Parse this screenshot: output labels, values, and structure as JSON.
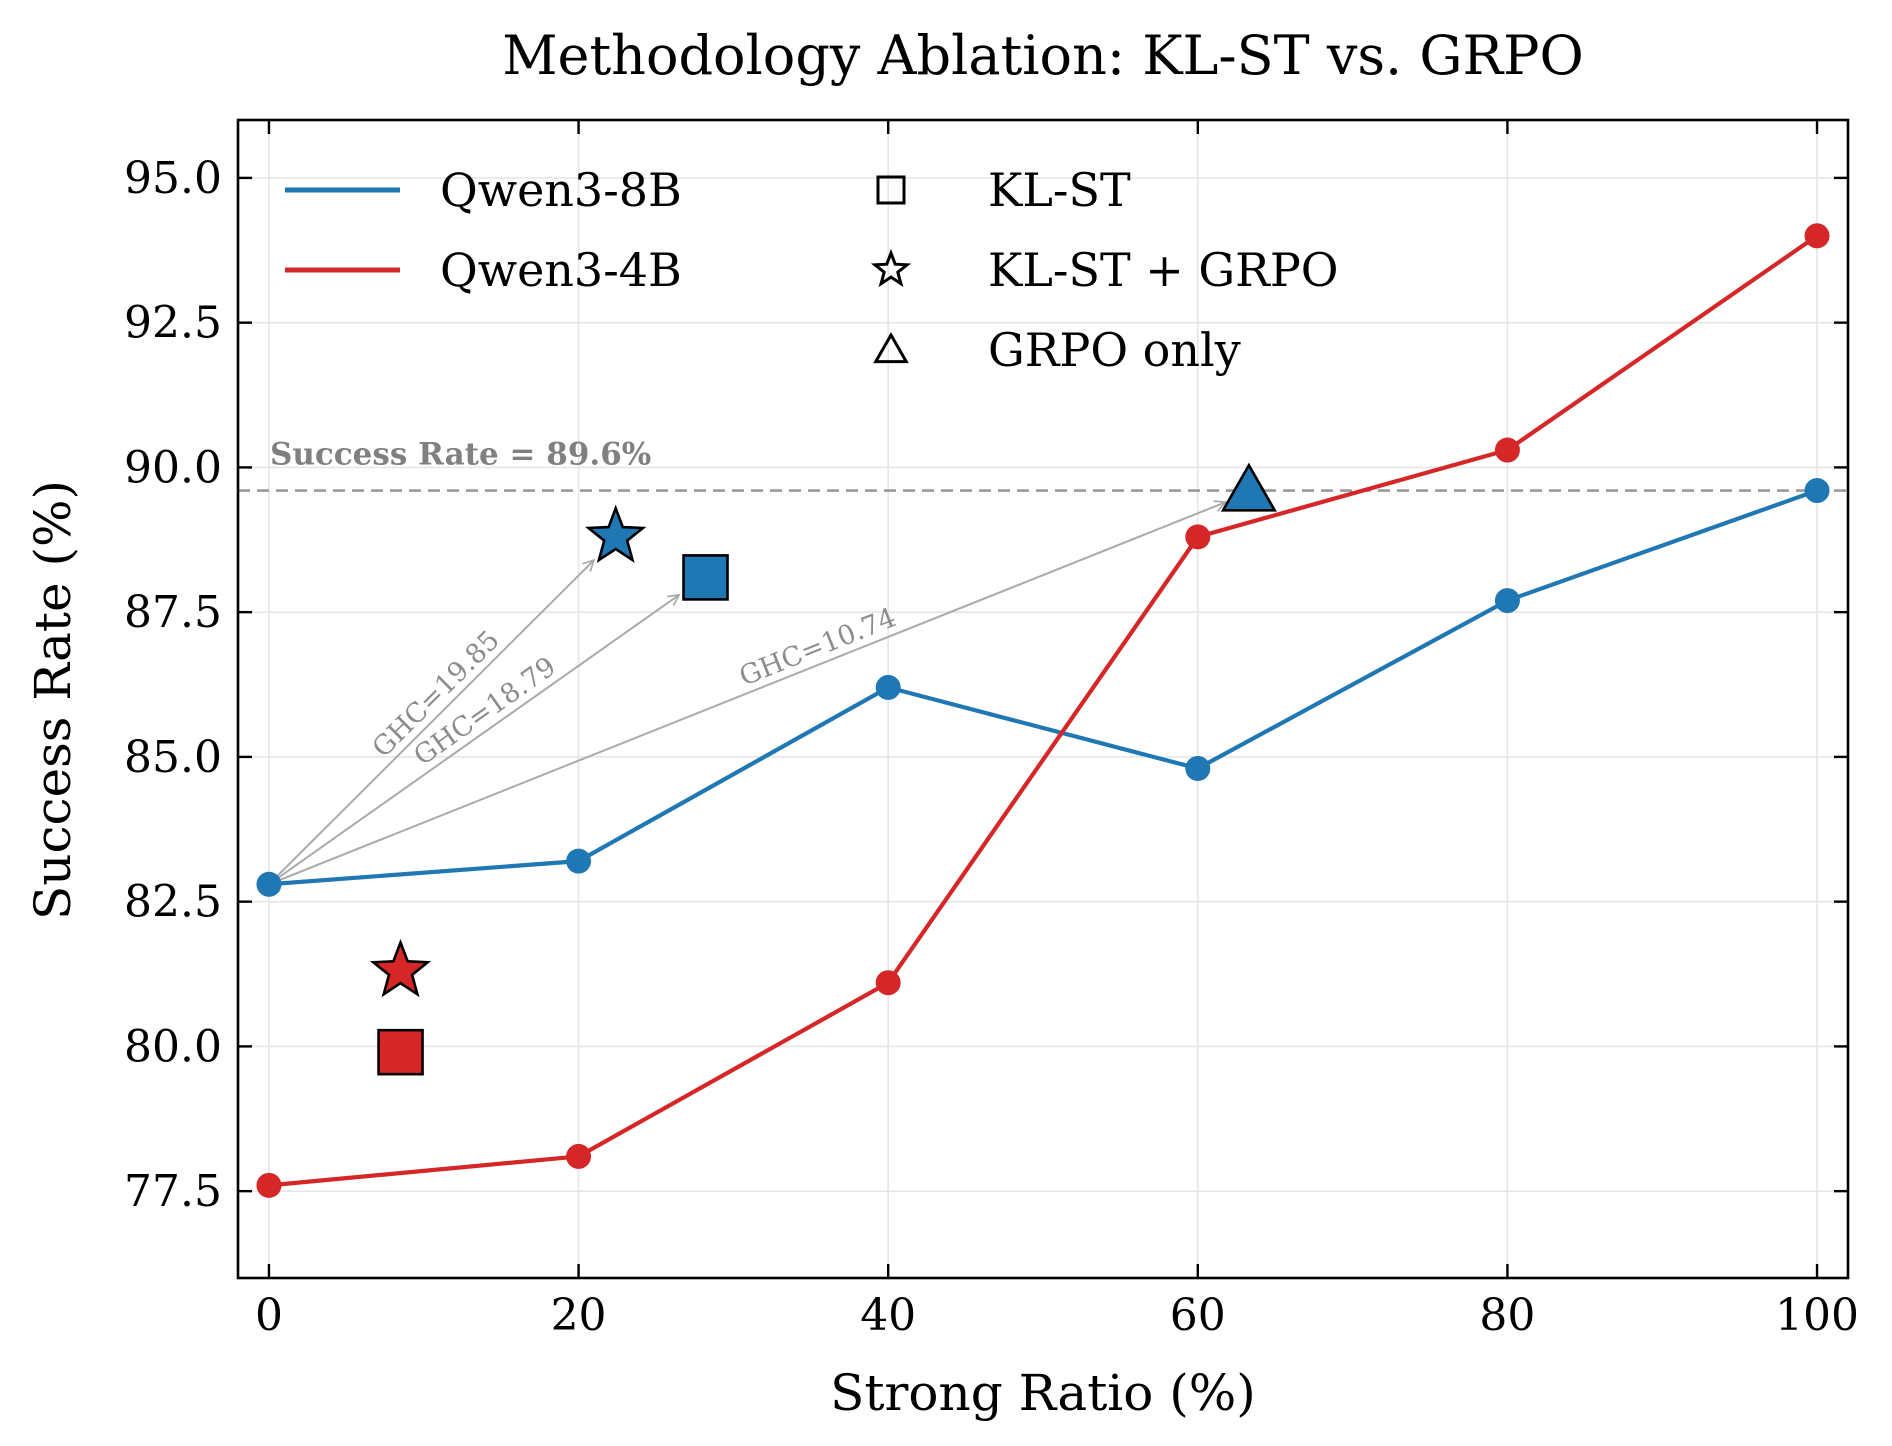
{
  "chart_data": {
    "type": "line",
    "title": "Methodology Ablation: KL-ST vs. GRPO",
    "xlabel": "Strong Ratio (%)",
    "ylabel": "Success Rate (%)",
    "xlim": [
      -2,
      102
    ],
    "ylim": [
      76.0,
      96.0
    ],
    "xticks": [
      0,
      20,
      40,
      60,
      80,
      100
    ],
    "yticks": [
      77.5,
      80.0,
      82.5,
      85.0,
      87.5,
      90.0,
      92.5,
      95.0
    ],
    "xtick_labels": [
      "0",
      "20",
      "40",
      "60",
      "80",
      "100"
    ],
    "ytick_labels": [
      "77.5",
      "80.0",
      "82.5",
      "85.0",
      "87.5",
      "90.0",
      "92.5",
      "95.0"
    ],
    "grid": true,
    "legend_position": "top-left",
    "x": [
      0,
      20,
      40,
      60,
      80,
      100
    ],
    "series": [
      {
        "name": "Qwen3-8B",
        "color": "#1f77b4",
        "values": [
          82.8,
          83.2,
          86.2,
          84.8,
          87.7,
          89.6
        ]
      },
      {
        "name": "Qwen3-4B",
        "color": "#d62728",
        "values": [
          77.6,
          78.1,
          81.1,
          88.8,
          90.3,
          94.0
        ]
      }
    ],
    "markers": [
      {
        "method": "KL-ST",
        "shape": "square",
        "model": "Qwen3-8B",
        "color": "#1f77b4",
        "x": 28.2,
        "y": 88.1
      },
      {
        "method": "KL-ST + GRPO",
        "shape": "star",
        "model": "Qwen3-8B",
        "color": "#1f77b4",
        "x": 22.4,
        "y": 88.8
      },
      {
        "method": "GRPO only",
        "shape": "triangle",
        "model": "Qwen3-8B",
        "color": "#1f77b4",
        "x": 63.3,
        "y": 89.6
      },
      {
        "method": "KL-ST",
        "shape": "square",
        "model": "Qwen3-4B",
        "color": "#d62728",
        "x": 8.5,
        "y": 79.9
      },
      {
        "method": "KL-ST + GRPO",
        "shape": "star",
        "model": "Qwen3-4B",
        "color": "#d62728",
        "x": 8.5,
        "y": 81.3
      }
    ],
    "reference_line": {
      "y": 89.6,
      "label": "Success Rate = 89.6%",
      "color": "#999999"
    },
    "annotations": [
      {
        "label": "GHC=19.85",
        "from": [
          0,
          82.8
        ],
        "to": [
          21.0,
          88.4
        ]
      },
      {
        "label": "GHC=18.79",
        "from": [
          0,
          82.8
        ],
        "to": [
          26.5,
          87.8
        ]
      },
      {
        "label": "GHC=10.74",
        "from": [
          0,
          82.8
        ],
        "to": [
          61.8,
          89.4
        ]
      }
    ],
    "legend": {
      "lines": [
        {
          "label": "Qwen3-8B",
          "color": "#1f77b4"
        },
        {
          "label": "Qwen3-4B",
          "color": "#d62728"
        }
      ],
      "shapes": [
        {
          "label": "KL-ST",
          "shape": "square"
        },
        {
          "label": "KL-ST + GRPO",
          "shape": "star"
        },
        {
          "label": "GRPO only",
          "shape": "triangle"
        }
      ]
    }
  }
}
